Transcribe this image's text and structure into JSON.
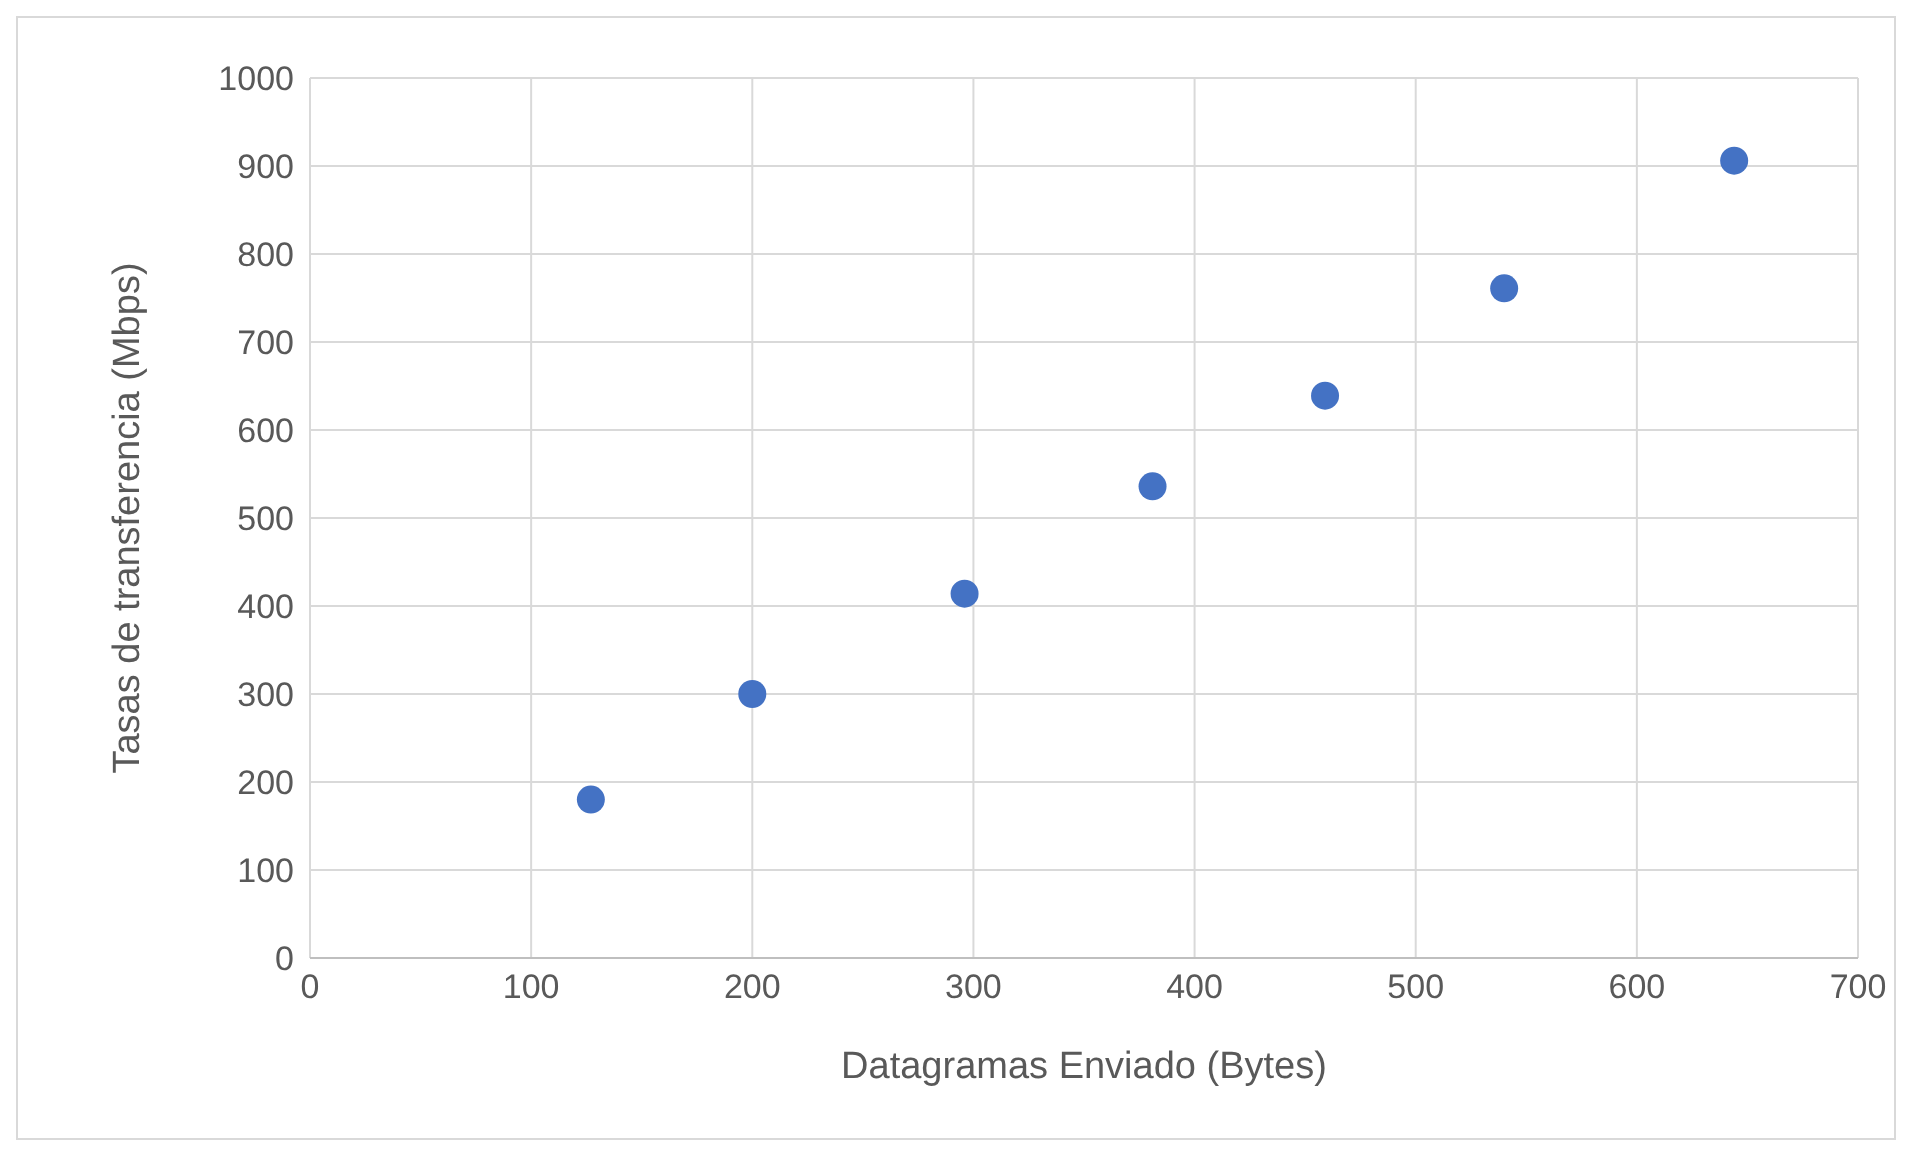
{
  "chart_data": {
    "type": "scatter",
    "xlabel": "Datagramas Enviado (Bytes)",
    "ylabel": "Tasas de transferencia (Mbps)",
    "x": [
      127,
      200,
      296,
      381,
      459,
      540,
      644
    ],
    "values": [
      180,
      300,
      414,
      536,
      639,
      761,
      906
    ],
    "color": "#4472c4",
    "marker": "circle",
    "xlim": [
      0,
      700
    ],
    "xticks": [
      0,
      100,
      200,
      300,
      400,
      500,
      600,
      700
    ],
    "ylim": [
      0,
      1000
    ],
    "yticks": [
      0,
      100,
      200,
      300,
      400,
      500,
      600,
      700,
      800,
      900,
      1000
    ],
    "grid": true,
    "legend": false
  }
}
